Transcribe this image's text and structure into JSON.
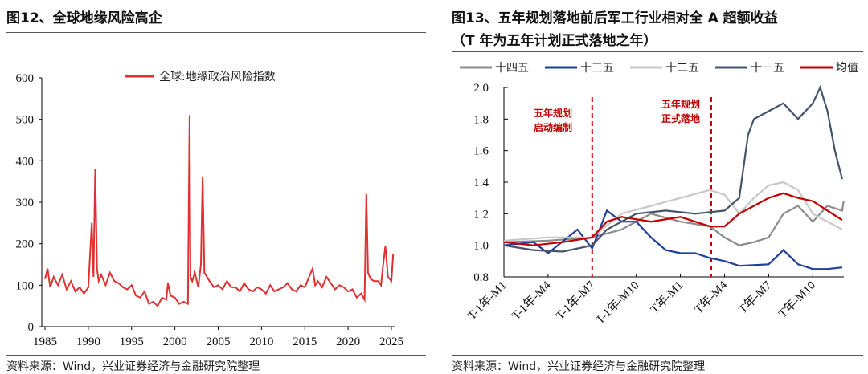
{
  "left": {
    "title": "图12、全球地缘风险高企",
    "source": "资料来源：Wind，兴业证券经济与金融研究院整理"
  },
  "right": {
    "title_line1": "图13、五年规划落地前后军工行业相对全 A 超额收益",
    "title_line2": "（T 年为五年计划正式落地之年）",
    "source": "资料来源：Wind，兴业证券经济与金融研究院整理",
    "annotation1": [
      "五年规划",
      "启动编制"
    ],
    "annotation2": [
      "五年规划",
      "正式落地"
    ]
  },
  "chart_data": [
    {
      "type": "line",
      "title": "",
      "xlabel": "",
      "ylabel": "",
      "xlim": [
        1985,
        2025.5
      ],
      "ylim": [
        0,
        600
      ],
      "xticks": [
        1985,
        1990,
        1995,
        2000,
        2005,
        2010,
        2015,
        2020,
        2025
      ],
      "yticks": [
        0,
        100,
        200,
        300,
        400,
        500,
        600
      ],
      "legend": "top",
      "grid": false,
      "series": [
        {
          "name": "全球:地缘政治风险指数",
          "color": "#e03030",
          "x": [
            1985,
            1985.3,
            1985.6,
            1986,
            1986.5,
            1987,
            1987.5,
            1988,
            1988.5,
            1989,
            1989.5,
            1990,
            1990.4,
            1990.6,
            1990.8,
            1991,
            1991.2,
            1991.5,
            1992,
            1992.5,
            1993,
            1993.5,
            1994,
            1994.5,
            1995,
            1995.5,
            1996,
            1996.5,
            1997,
            1997.5,
            1998,
            1998.5,
            1999,
            1999.2,
            1999.5,
            2000,
            2000.5,
            2001,
            2001.5,
            2001.7,
            2001.8,
            2002,
            2002.3,
            2002.7,
            2003,
            2003.2,
            2003.4,
            2003.7,
            2004,
            2004.5,
            2005,
            2005.5,
            2006,
            2006.5,
            2007,
            2007.5,
            2008,
            2008.5,
            2009,
            2009.5,
            2010,
            2010.5,
            2011,
            2011.5,
            2012,
            2012.5,
            2013,
            2013.5,
            2014,
            2014.5,
            2015,
            2015.5,
            2015.9,
            2016.2,
            2016.5,
            2017,
            2017.5,
            2018,
            2018.5,
            2019,
            2019.5,
            2020,
            2020.5,
            2021,
            2021.5,
            2021.9,
            2022.1,
            2022.3,
            2022.6,
            2023,
            2023.5,
            2023.8,
            2024,
            2024.3,
            2024.6,
            2025,
            2025.2
          ],
          "y": [
            115,
            140,
            95,
            120,
            100,
            125,
            90,
            110,
            85,
            95,
            80,
            95,
            250,
            120,
            380,
            140,
            110,
            125,
            100,
            130,
            110,
            105,
            95,
            90,
            100,
            75,
            70,
            85,
            55,
            60,
            50,
            70,
            65,
            105,
            75,
            70,
            55,
            60,
            55,
            510,
            120,
            110,
            130,
            95,
            150,
            360,
            130,
            120,
            110,
            95,
            100,
            90,
            110,
            95,
            95,
            85,
            105,
            90,
            85,
            95,
            90,
            80,
            100,
            85,
            90,
            95,
            105,
            90,
            85,
            100,
            95,
            120,
            140,
            100,
            110,
            95,
            120,
            105,
            90,
            100,
            95,
            85,
            90,
            70,
            80,
            65,
            320,
            130,
            115,
            110,
            110,
            100,
            140,
            195,
            120,
            110,
            175
          ]
        }
      ]
    },
    {
      "type": "line",
      "title": "",
      "xlabel": "",
      "ylabel": "",
      "ylim": [
        0.8,
        2.0
      ],
      "xlim": [
        0,
        23.1
      ],
      "xticks": [
        "T-1年-M1",
        "T-1年-M4",
        "T-1年-M7",
        "T-1年-M10",
        "T年-M1",
        "T年-M4",
        "T年-M7",
        "T年-M10"
      ],
      "xtick_positions": [
        0,
        3,
        6,
        9,
        12,
        15,
        18,
        21
      ],
      "yticks": [
        "0.8",
        "1.0",
        "1.2",
        "1.4",
        "1.6",
        "1.8",
        "2.0"
      ],
      "legend": "top",
      "grid": false,
      "vlines": [
        6,
        14.1
      ],
      "series": [
        {
          "name": "十四五",
          "color": "#8c8c8c",
          "x": [
            0,
            3,
            6,
            8,
            10,
            12,
            14,
            15,
            16,
            17,
            18,
            19,
            20,
            21,
            22,
            23,
            23.1
          ],
          "y": [
            1.02,
            1.03,
            1.05,
            1.1,
            1.2,
            1.15,
            1.12,
            1.05,
            1.0,
            1.02,
            1.05,
            1.2,
            1.25,
            1.15,
            1.25,
            1.22,
            1.28
          ]
        },
        {
          "name": "十三五",
          "color": "#1f3f99",
          "x": [
            0,
            2,
            3,
            5,
            6,
            7,
            8,
            9,
            10,
            11,
            12,
            13,
            14,
            15,
            16,
            18,
            19,
            20,
            21,
            22,
            23
          ],
          "y": [
            1.0,
            1.02,
            0.95,
            1.1,
            0.98,
            1.22,
            1.15,
            1.15,
            1.05,
            0.97,
            0.95,
            0.95,
            0.92,
            0.9,
            0.87,
            0.88,
            0.97,
            0.88,
            0.85,
            0.85,
            0.86
          ]
        },
        {
          "name": "十二五",
          "color": "#c8c8c8",
          "x": [
            0,
            3,
            6,
            8,
            10,
            12,
            14,
            15,
            16,
            17,
            18,
            19,
            20,
            21,
            22,
            23
          ],
          "y": [
            1.03,
            1.05,
            1.05,
            1.2,
            1.25,
            1.3,
            1.35,
            1.32,
            1.2,
            1.3,
            1.38,
            1.4,
            1.35,
            1.2,
            1.15,
            1.1
          ]
        },
        {
          "name": "十一五",
          "color": "#44546a",
          "x": [
            0,
            2,
            4,
            6,
            7,
            9,
            11,
            13,
            15,
            16,
            16.6,
            17,
            18,
            19,
            20,
            21,
            21.5,
            22,
            22.5,
            23
          ],
          "y": [
            1.0,
            0.97,
            0.96,
            1.0,
            1.1,
            1.2,
            1.22,
            1.2,
            1.22,
            1.3,
            1.7,
            1.8,
            1.85,
            1.9,
            1.8,
            1.9,
            2.0,
            1.85,
            1.6,
            1.42
          ]
        },
        {
          "name": "均值",
          "color": "#c00000",
          "x": [
            0,
            2,
            4,
            6,
            7,
            8,
            10,
            12,
            13,
            14,
            15,
            16,
            17,
            18,
            19,
            20,
            21,
            22,
            23
          ],
          "y": [
            1.02,
            1.0,
            1.02,
            1.05,
            1.15,
            1.18,
            1.15,
            1.18,
            1.15,
            1.12,
            1.12,
            1.2,
            1.25,
            1.3,
            1.33,
            1.3,
            1.28,
            1.22,
            1.16
          ]
        }
      ]
    }
  ]
}
